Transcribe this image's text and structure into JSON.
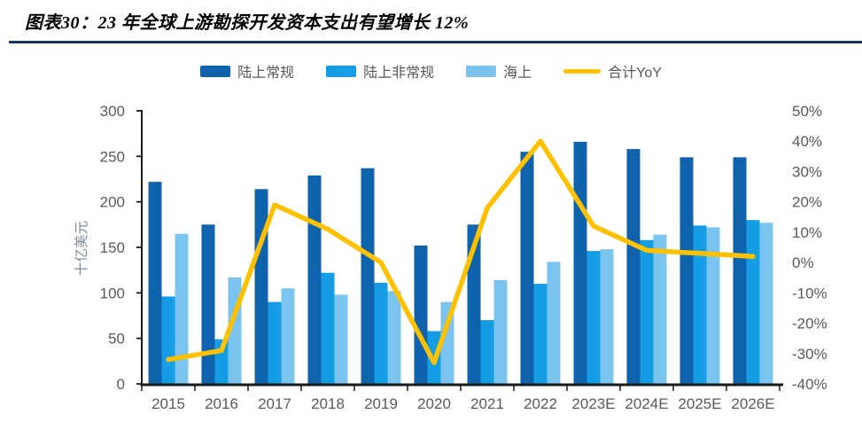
{
  "title": {
    "text": "图表30：23 年全球上游勘探开发资本支出有望增长 12%"
  },
  "colors": {
    "title_underline": "#17375E",
    "axis_line": "#1a1a1a",
    "tick_text": "#595959",
    "axis_title_text": "#7C8A99",
    "legend_text": "#595959",
    "background": "#ffffff"
  },
  "chart_data": {
    "type": "bar",
    "subtype": "grouped-bars-with-line-on-secondary-axis",
    "title": "图表30：23 年全球上游勘探开发资本支出有望增长 12%",
    "categories": [
      "2015",
      "2016",
      "2017",
      "2018",
      "2019",
      "2020",
      "2021",
      "2022",
      "2023E",
      "2024E",
      "2025E",
      "2026E"
    ],
    "series": [
      {
        "name": "陆上常规",
        "type": "bar",
        "axis": "left",
        "color": "#0E63AC",
        "values": [
          222,
          175,
          214,
          229,
          237,
          152,
          175,
          255,
          266,
          258,
          249,
          249
        ]
      },
      {
        "name": "陆上非常规",
        "type": "bar",
        "axis": "left",
        "color": "#149DE4",
        "values": [
          96,
          49,
          90,
          122,
          111,
          58,
          70,
          110,
          146,
          158,
          174,
          180
        ]
      },
      {
        "name": "海上",
        "type": "bar",
        "axis": "left",
        "color": "#7AC4EF",
        "values": [
          165,
          117,
          105,
          98,
          102,
          90,
          114,
          134,
          148,
          164,
          172,
          177
        ]
      },
      {
        "name": "合计YoY",
        "type": "line",
        "axis": "right",
        "color": "#FFC000",
        "values": [
          -32,
          -29,
          19,
          11,
          0,
          -33,
          18,
          40,
          12,
          4,
          3,
          2
        ]
      }
    ],
    "left_axis": {
      "title": "十亿美元",
      "min": 0,
      "max": 300,
      "step": 50,
      "tick_labels": [
        "0",
        "50",
        "100",
        "150",
        "200",
        "250",
        "300"
      ]
    },
    "right_axis": {
      "title": "",
      "min": -40,
      "max": 50,
      "step": 10,
      "unit": "%",
      "tick_labels": [
        "-40%",
        "-30%",
        "-20%",
        "-10%",
        "0%",
        "10%",
        "20%",
        "30%",
        "40%",
        "50%"
      ]
    },
    "legend_position": "top",
    "grid": false
  }
}
